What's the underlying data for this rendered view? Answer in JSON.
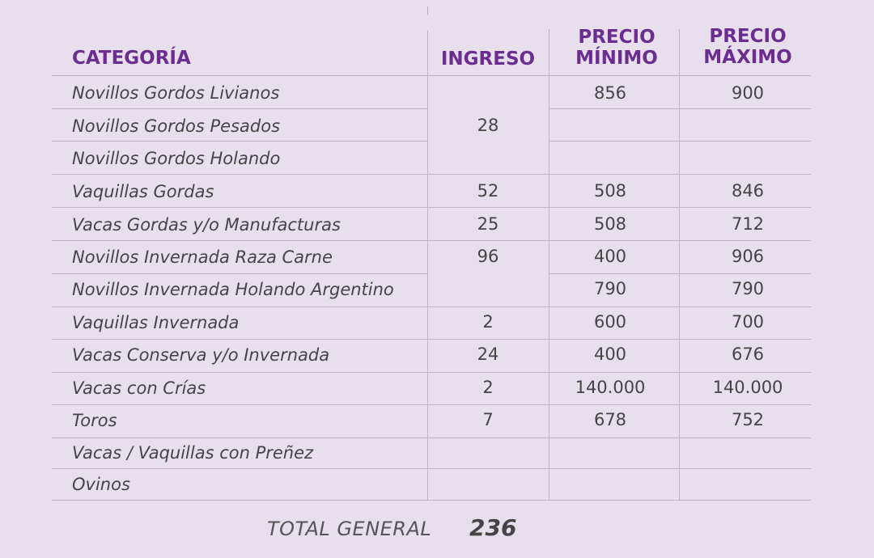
{
  "headers": {
    "categoria": "CATEGORÍA",
    "ingreso": "INGRESO",
    "precio_min_1": "PRECIO",
    "precio_min_2": "MÍNIMO",
    "precio_max_1": "PRECIO",
    "precio_max_2": "MÁXIMO"
  },
  "rows": [
    {
      "categoria": "Novillos Gordos Livianos",
      "ingreso": "",
      "min": "856",
      "max": "900"
    },
    {
      "categoria": "Novillos Gordos Pesados",
      "ingreso": "28",
      "min": "",
      "max": ""
    },
    {
      "categoria": "Novillos Gordos Holando",
      "ingreso": "",
      "min": "",
      "max": ""
    },
    {
      "categoria": "Vaquillas Gordas",
      "ingreso": "52",
      "min": "508",
      "max": "846"
    },
    {
      "categoria": "Vacas Gordas y/o Manufacturas",
      "ingreso": "25",
      "min": "508",
      "max": "712"
    },
    {
      "categoria": "Novillos Invernada Raza Carne",
      "ingreso": "96",
      "min": "400",
      "max": "906"
    },
    {
      "categoria": "Novillos Invernada Holando Argentino",
      "ingreso": "",
      "min": "790",
      "max": "790"
    },
    {
      "categoria": "Vaquillas Invernada",
      "ingreso": "2",
      "min": "600",
      "max": "700"
    },
    {
      "categoria": "Vacas Conserva y/o Invernada",
      "ingreso": "24",
      "min": "400",
      "max": "676"
    },
    {
      "categoria": "Vacas con Crías",
      "ingreso": "2",
      "min": "140.000",
      "max": "140.000"
    },
    {
      "categoria": "Toros",
      "ingreso": "7",
      "min": "678",
      "max": "752"
    },
    {
      "categoria": "Vacas / Vaquillas con Preñez",
      "ingreso": "",
      "min": "",
      "max": ""
    },
    {
      "categoria": "Ovinos",
      "ingreso": "",
      "min": "",
      "max": ""
    }
  ],
  "total": {
    "label": "TOTAL GENERAL",
    "value": "236"
  }
}
